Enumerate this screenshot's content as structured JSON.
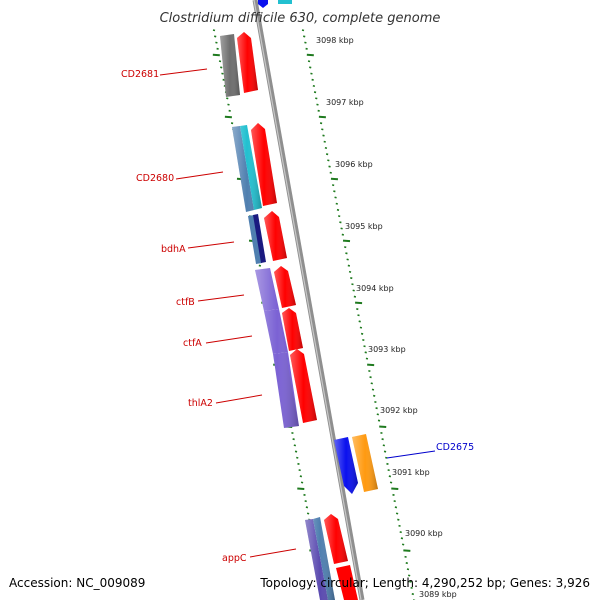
{
  "title": "Clostridium difficile 630, complete genome",
  "footer": {
    "accession": "Accession: NC_009089",
    "topology": "Topology: circular; Length: 4,290,252 bp; Genes: 3,926"
  },
  "colors": {
    "backbone": "#8f8f8f",
    "tick": "#1f7a1f",
    "label_red": "#cc0000",
    "label_blue": "#0000cc",
    "red": "#ff0000",
    "grey": "#6e6e6e",
    "steel": "#4f7fb0",
    "cyan": "#22c0d0",
    "navy": "#1a1a80",
    "purple": "#7b62d4",
    "blue": "#0a10ee",
    "orange": "#ff9a10"
  },
  "scale_labels": [
    {
      "text": "3098 kbp"
    },
    {
      "text": "3097 kbp"
    },
    {
      "text": "3096 kbp"
    },
    {
      "text": "3095 kbp"
    },
    {
      "text": "3094 kbp"
    },
    {
      "text": "3093 kbp"
    },
    {
      "text": "3092 kbp"
    },
    {
      "text": "3091 kbp"
    },
    {
      "text": "3090 kbp"
    },
    {
      "text": "3089 kbp"
    }
  ],
  "gene_labels": [
    {
      "name": "CD2681",
      "color": "label_red"
    },
    {
      "name": "CD2680",
      "color": "label_red"
    },
    {
      "name": "bdhA",
      "color": "label_red"
    },
    {
      "name": "ctfB",
      "color": "label_red"
    },
    {
      "name": "ctfA",
      "color": "label_red"
    },
    {
      "name": "thlA2",
      "color": "label_red"
    },
    {
      "name": "CD2675",
      "color": "label_blue"
    },
    {
      "name": "appC",
      "color": "label_red"
    }
  ]
}
